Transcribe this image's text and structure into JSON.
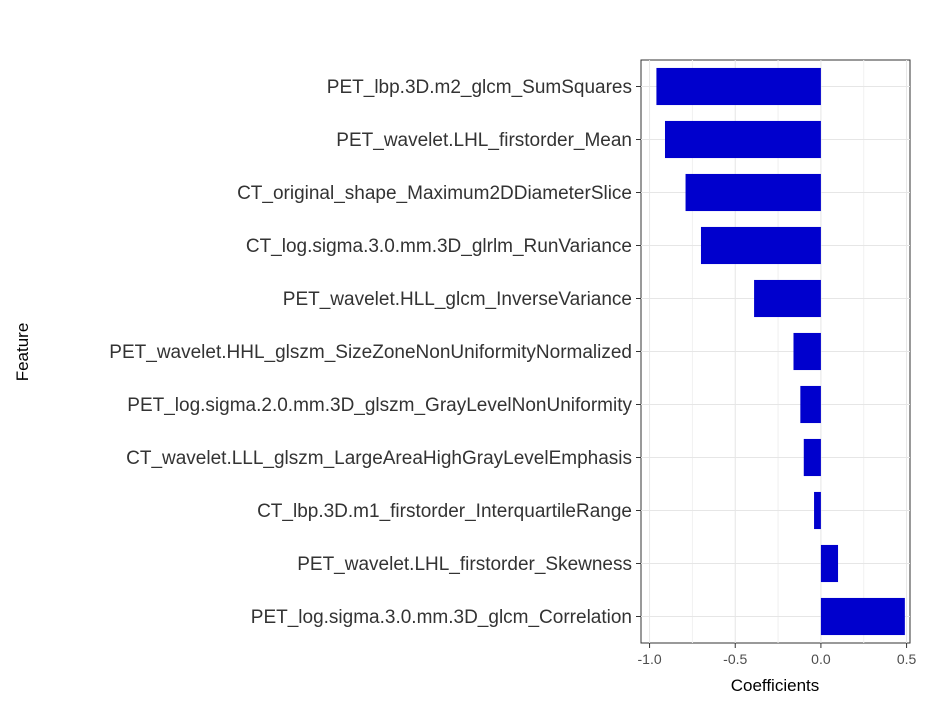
{
  "chart_data": {
    "type": "bar",
    "orientation": "horizontal",
    "title": "",
    "xlabel": "Coefficients",
    "ylabel": "Feature",
    "xlim": [
      -1.05,
      0.52
    ],
    "xticks": [
      -1.0,
      -0.5,
      0.0,
      0.5
    ],
    "xtick_labels": [
      "-1.0",
      "-0.5",
      "0.0",
      "0.5"
    ],
    "grid": true,
    "bar_color": "#0000cd",
    "categories": [
      "PET_lbp.3D.m2_glcm_SumSquares",
      "PET_wavelet.LHL_firstorder_Mean",
      "CT_original_shape_Maximum2DDiameterSlice",
      "CT_log.sigma.3.0.mm.3D_glrlm_RunVariance",
      "PET_wavelet.HLL_glcm_InverseVariance",
      "PET_wavelet.HHL_glszm_SizeZoneNonUniformityNormalized",
      "PET_log.sigma.2.0.mm.3D_glszm_GrayLevelNonUniformity",
      "CT_wavelet.LLL_glszm_LargeAreaHighGrayLevelEmphasis",
      "CT_lbp.3D.m1_firstorder_InterquartileRange",
      "PET_wavelet.LHL_firstorder_Skewness",
      "PET_log.sigma.3.0.mm.3D_glcm_Correlation"
    ],
    "values": [
      -0.96,
      -0.91,
      -0.79,
      -0.7,
      -0.39,
      -0.16,
      -0.12,
      -0.1,
      -0.04,
      0.1,
      0.49
    ]
  }
}
